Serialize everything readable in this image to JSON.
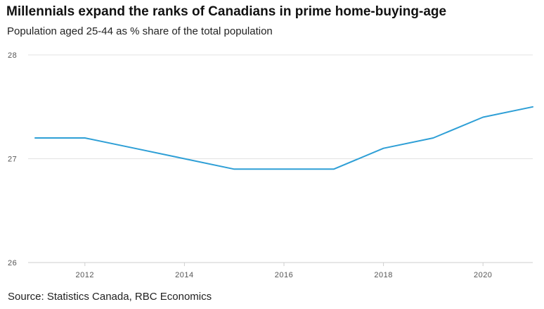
{
  "colors": {
    "line": "#2e9fd6",
    "grid": "#e3e3e3",
    "text": "#222222"
  },
  "chart_data": {
    "type": "line",
    "title": "Millennials expand the ranks of Canadians in prime home-buying-age",
    "subtitle": "Population aged 25-44 as % share of the total population",
    "source": "Source: Statistics Canada, RBC Economics",
    "xlabel": "",
    "ylabel": "",
    "x": [
      2011,
      2012,
      2013,
      2014,
      2015,
      2016,
      2017,
      2018,
      2019,
      2020,
      2021
    ],
    "series": [
      {
        "values": [
          27.2,
          27.2,
          27.1,
          27.0,
          26.9,
          26.9,
          26.9,
          27.1,
          27.2,
          27.4,
          27.5
        ]
      }
    ],
    "xlim": [
      2011,
      2021
    ],
    "ylim": [
      26,
      28
    ],
    "xticks": [
      2012,
      2014,
      2016,
      2018,
      2020
    ],
    "yticks": [
      26,
      27,
      28
    ],
    "grid": true,
    "legend": "none"
  }
}
